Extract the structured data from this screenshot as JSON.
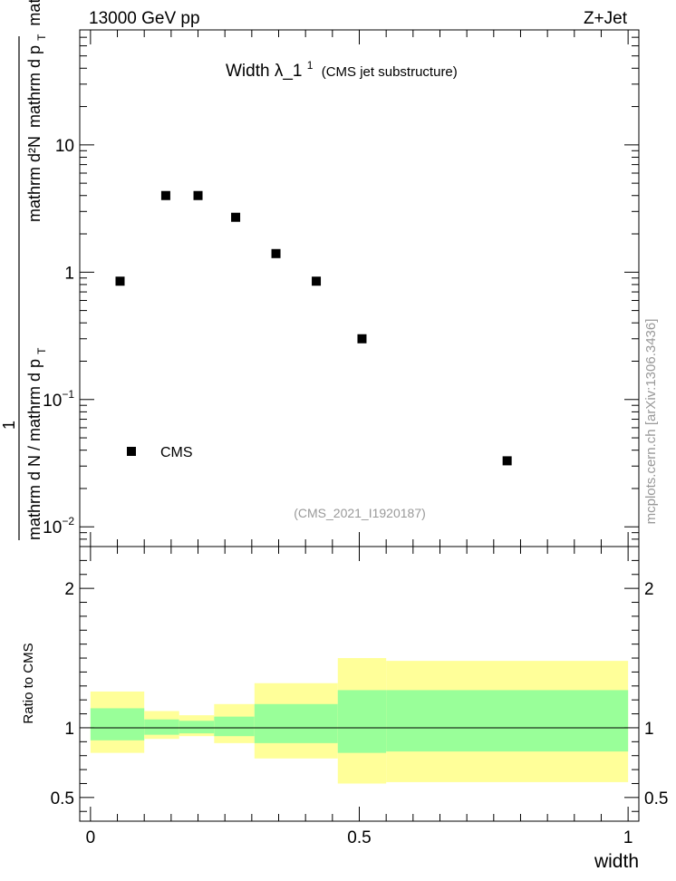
{
  "header": {
    "left": "13000 GeV pp",
    "right": "Z+Jet"
  },
  "title": {
    "main": "Width λ_1",
    "sup": "1",
    "sub": "(CMS jet substructure)"
  },
  "analysis_id": "(CMS_2021_I1920187)",
  "watermark": "mcplots.cern.ch [arXiv:1306.3436]",
  "ylabel": {
    "numerator_one": "1",
    "numerator": "mathrm d²N",
    "numerator_sub": "mathrm d p",
    "numerator_sub_T": "T",
    "numerator_tail": "mathrm d lambda",
    "denominator": "mathrm d N / mathrm d p",
    "denominator_T": "T"
  },
  "ratio_ylabel": "Ratio to CMS",
  "xlabel": "width",
  "legend": {
    "entry": "CMS",
    "position": "lower-left"
  },
  "colors": {
    "band_outer": "#ffff99",
    "band_inner": "#99ff99",
    "marker": "#000000"
  },
  "main_axis": {
    "scale": "log",
    "ylim": [
      0.007,
      80
    ],
    "major_ticks": [
      0.01,
      0.1,
      1,
      10
    ],
    "major_tick_labels": [
      "10",
      "10",
      "1",
      "10"
    ],
    "major_tick_exponents": [
      "−2",
      "−1",
      "",
      ""
    ]
  },
  "ratio_axis": {
    "ylim": [
      0.33,
      2.3
    ],
    "ticks": [
      0.5,
      1,
      2
    ],
    "tick_labels": [
      "0.5",
      "1",
      "2"
    ]
  },
  "x_axis": {
    "xlim": [
      -0.02,
      1.02
    ],
    "ticks": [
      0,
      0.5,
      1
    ],
    "tick_labels": [
      "0",
      "0.5",
      "1"
    ]
  },
  "chart_data": [
    {
      "type": "scatter",
      "series": [
        {
          "name": "CMS",
          "x": [
            0.055,
            0.14,
            0.2,
            0.27,
            0.345,
            0.42,
            0.505,
            0.775
          ],
          "y": [
            0.85,
            4.0,
            4.0,
            2.7,
            1.4,
            0.85,
            0.3,
            0.033
          ]
        }
      ]
    },
    {
      "type": "area",
      "bins": [
        {
          "x": [
            0.0,
            0.1
          ],
          "inner": [
            0.91,
            1.14
          ],
          "outer": [
            0.82,
            1.26
          ]
        },
        {
          "x": [
            0.1,
            0.165
          ],
          "inner": [
            0.95,
            1.06
          ],
          "outer": [
            0.92,
            1.12
          ]
        },
        {
          "x": [
            0.165,
            0.23
          ],
          "inner": [
            0.96,
            1.05
          ],
          "outer": [
            0.94,
            1.09
          ]
        },
        {
          "x": [
            0.23,
            0.305
          ],
          "inner": [
            0.94,
            1.08
          ],
          "outer": [
            0.89,
            1.17
          ]
        },
        {
          "x": [
            0.305,
            0.46
          ],
          "inner": [
            0.89,
            1.17
          ],
          "outer": [
            0.78,
            1.32
          ]
        },
        {
          "x": [
            0.46,
            0.55
          ],
          "inner": [
            0.82,
            1.27
          ],
          "outer": [
            0.6,
            1.5
          ]
        },
        {
          "x": [
            0.55,
            1.0
          ],
          "inner": [
            0.83,
            1.27
          ],
          "outer": [
            0.61,
            1.48
          ]
        }
      ],
      "reference_line": 1
    }
  ]
}
